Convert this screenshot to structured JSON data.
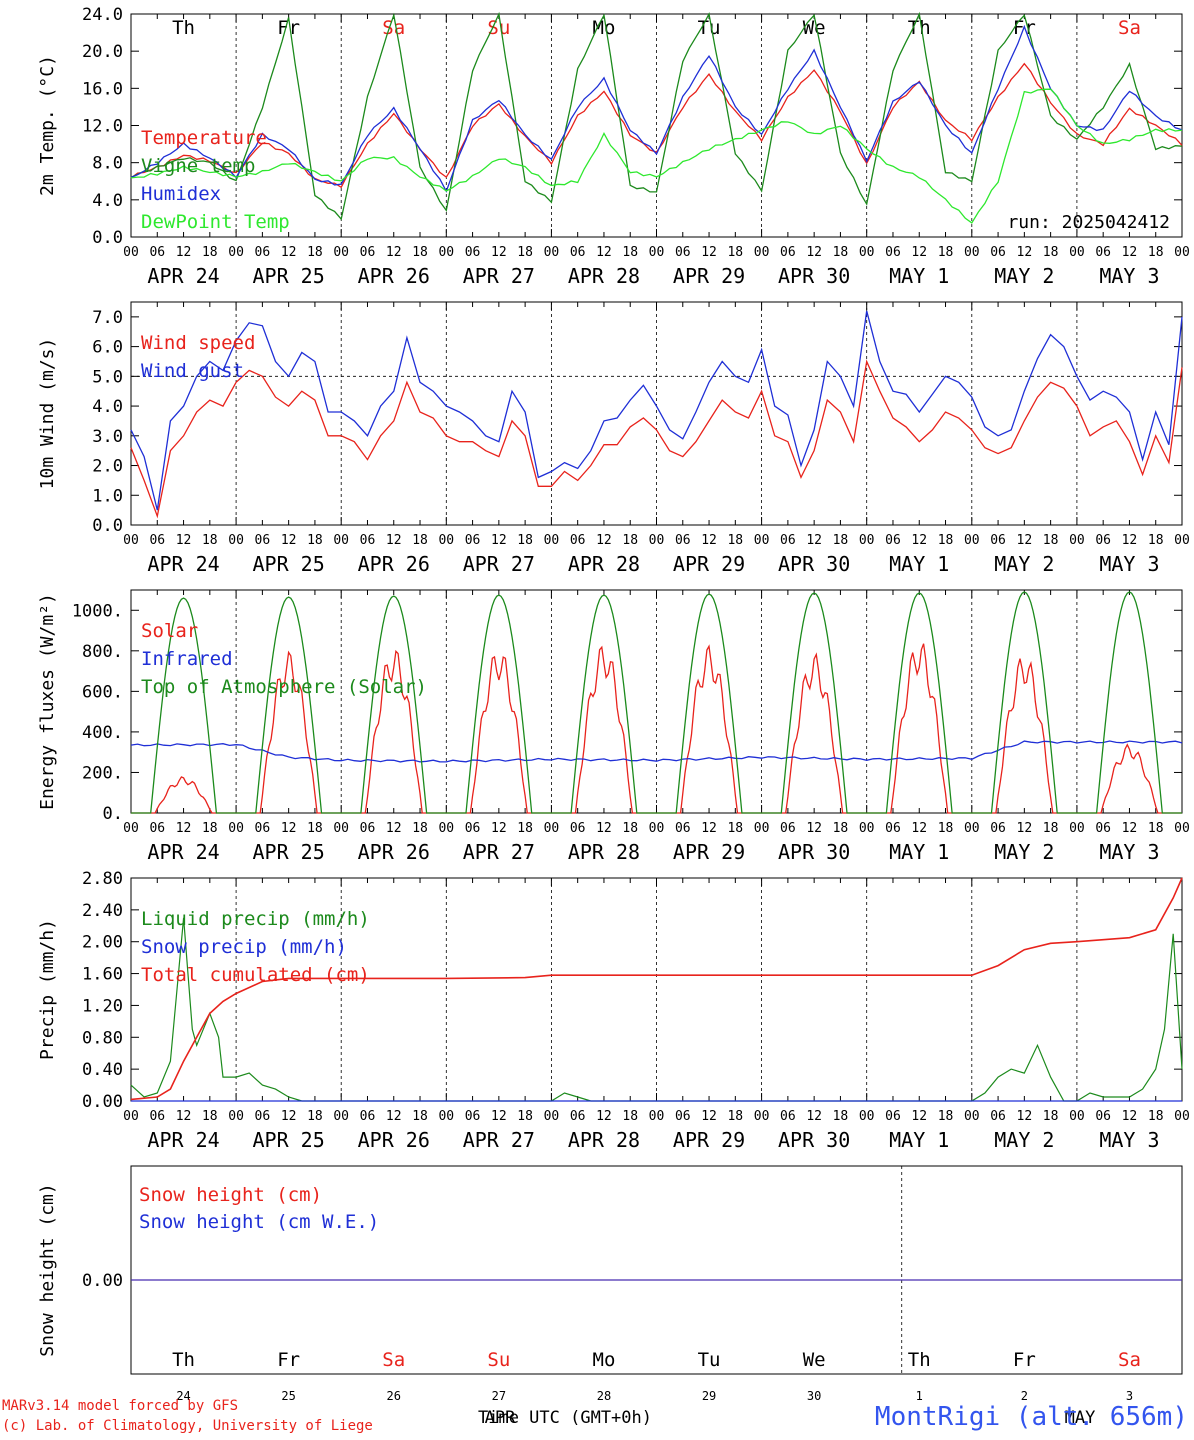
{
  "x_ticks": [
    "00",
    "06",
    "12",
    "18"
  ],
  "date_labels": [
    "APR 24",
    "APR 25",
    "APR 26",
    "APR 27",
    "APR 28",
    "APR 29",
    "APR 30",
    "MAY  1",
    "MAY  2",
    "MAY  3"
  ],
  "weekdays": [
    {
      "label": "Th",
      "weekend": false
    },
    {
      "label": "Fr",
      "weekend": false
    },
    {
      "label": "Sa",
      "weekend": true
    },
    {
      "label": "Su",
      "weekend": true
    },
    {
      "label": "Mo",
      "weekend": false
    },
    {
      "label": "Tu",
      "weekend": false
    },
    {
      "label": "We",
      "weekend": false
    },
    {
      "label": "Th",
      "weekend": false
    },
    {
      "label": "Fr",
      "weekend": false
    },
    {
      "label": "Sa",
      "weekend": true
    }
  ],
  "day_numbers": [
    "24",
    "25",
    "26",
    "27",
    "28",
    "29",
    "30",
    "1",
    "2",
    "3"
  ],
  "footer": {
    "model": "MARv3.14 model forced by GFS",
    "lab": "(c) Lab. of Climatology, University of Liege",
    "xlabel": "Time UTC (GMT+0h)",
    "month_label_1": "APR",
    "month_label_2": "MAY",
    "station": "MontRigi (alt. 656m)"
  },
  "colors": {
    "red": "#e8231c",
    "green": "#1c8a1c",
    "blue": "#1f2fd6",
    "lightgreen": "#2ee82e",
    "weekend": "#e8231c"
  },
  "chart_data": [
    {
      "type": "line",
      "ylabel": "2m Temp. (°C)",
      "ylim": [
        0,
        24
      ],
      "yticks": [
        "0.0",
        "4.0",
        "8.0",
        "12.0",
        "16.0",
        "20.0",
        "24.0"
      ],
      "annotation": "run: 2025042412",
      "legend_placement": "left",
      "x_unit": "hours since APR 24 00 UTC",
      "series": [
        {
          "name": "Temperature",
          "color": "red",
          "x": [
            0,
            6,
            12,
            18,
            24,
            30,
            36,
            42,
            48,
            54,
            60,
            66,
            72,
            78,
            84,
            90,
            96,
            102,
            108,
            114,
            120,
            126,
            132,
            138,
            144,
            150,
            156,
            162,
            168,
            174,
            180,
            186,
            192,
            198,
            204,
            210,
            216,
            222,
            228,
            234,
            240
          ],
          "values": [
            6.5,
            7.5,
            8.8,
            8.2,
            6.8,
            10.2,
            9.0,
            6.2,
            5.5,
            10.0,
            13.3,
            9.5,
            6.3,
            12.0,
            14.3,
            10.8,
            8.0,
            13.0,
            15.7,
            11.0,
            9.0,
            14.0,
            17.5,
            13.5,
            10.5,
            15.0,
            18.0,
            13.5,
            7.8,
            14.0,
            16.7,
            12.5,
            10.5,
            15.0,
            18.7,
            14.5,
            11.0,
            10.0,
            13.8,
            12.0,
            10.0
          ]
        },
        {
          "name": "Vigne temp",
          "color": "green",
          "x": [
            0,
            6,
            12,
            18,
            24,
            30,
            36,
            42,
            48,
            54,
            60,
            66,
            72,
            78,
            84,
            90,
            96,
            102,
            108,
            114,
            120,
            126,
            132,
            138,
            144,
            150,
            156,
            162,
            168,
            174,
            180,
            186,
            192,
            198,
            204,
            210,
            216,
            222,
            228,
            234,
            240
          ],
          "values": [
            6.5,
            7.5,
            8.5,
            8.0,
            6.0,
            14.0,
            23.5,
            4.5,
            2.0,
            15.0,
            24.0,
            7.5,
            2.8,
            18.0,
            24.0,
            6.0,
            3.8,
            18.0,
            24.0,
            5.5,
            4.8,
            19.0,
            24.0,
            9.0,
            5.0,
            20.0,
            24.0,
            9.0,
            3.5,
            18.0,
            24.0,
            7.0,
            6.0,
            20.0,
            24.0,
            13.0,
            10.5,
            14.0,
            18.5,
            9.5,
            9.8
          ]
        },
        {
          "name": "Humidex",
          "color": "blue",
          "x": [
            0,
            6,
            12,
            18,
            24,
            30,
            36,
            42,
            48,
            54,
            60,
            66,
            72,
            78,
            84,
            90,
            96,
            102,
            108,
            114,
            120,
            126,
            132,
            138,
            144,
            150,
            156,
            162,
            168,
            174,
            180,
            186,
            192,
            198,
            204,
            210,
            216,
            222,
            228,
            234,
            240
          ],
          "values": [
            6.3,
            8.0,
            10.0,
            8.5,
            6.5,
            11.0,
            9.5,
            6.2,
            5.6,
            11.0,
            13.8,
            9.5,
            5.0,
            12.5,
            14.8,
            11.0,
            8.3,
            14.0,
            17.0,
            11.5,
            9.0,
            15.0,
            19.6,
            14.0,
            11.0,
            16.0,
            20.0,
            14.0,
            8.2,
            14.5,
            16.8,
            12.0,
            9.0,
            16.0,
            22.5,
            16.0,
            12.0,
            11.5,
            15.8,
            13.0,
            11.5
          ]
        },
        {
          "name": "DewPoint Temp",
          "color": "lightgreen",
          "x": [
            0,
            6,
            12,
            18,
            24,
            30,
            36,
            42,
            48,
            54,
            60,
            66,
            72,
            78,
            84,
            90,
            96,
            102,
            108,
            114,
            120,
            126,
            132,
            138,
            144,
            150,
            156,
            162,
            168,
            174,
            180,
            186,
            192,
            198,
            204,
            210,
            216,
            222,
            228,
            234,
            240
          ],
          "values": [
            6.3,
            6.8,
            7.5,
            7.0,
            6.5,
            7.0,
            8.0,
            7.0,
            6.0,
            8.5,
            8.5,
            6.5,
            5.0,
            6.5,
            8.5,
            7.5,
            5.5,
            6.0,
            11.0,
            7.0,
            6.5,
            8.0,
            9.5,
            10.5,
            11.5,
            12.5,
            11.0,
            12.0,
            9.5,
            7.5,
            6.5,
            4.0,
            1.5,
            6.0,
            15.5,
            16.0,
            12.0,
            10.0,
            10.5,
            11.5,
            11.5
          ]
        }
      ]
    },
    {
      "type": "line",
      "ylabel": "10m Wind (m/s)",
      "ylim": [
        0,
        7.5
      ],
      "yticks": [
        "0.0",
        "1.0",
        "2.0",
        "3.0",
        "4.0",
        "5.0",
        "6.0",
        "7.0"
      ],
      "reference_line": 5.0,
      "series": [
        {
          "name": "Wind speed",
          "color": "red",
          "x": [
            0,
            3,
            6,
            9,
            12,
            15,
            18,
            21,
            24,
            27,
            30,
            33,
            36,
            39,
            42,
            45,
            48,
            51,
            54,
            57,
            60,
            63,
            66,
            69,
            72,
            75,
            78,
            81,
            84,
            87,
            90,
            93,
            96,
            99,
            102,
            105,
            108,
            111,
            114,
            117,
            120,
            123,
            126,
            129,
            132,
            135,
            138,
            141,
            144,
            147,
            150,
            153,
            156,
            159,
            162,
            165,
            168,
            171,
            174,
            177,
            180,
            183,
            186,
            189,
            192,
            195,
            198,
            201,
            204,
            207,
            210,
            213,
            216,
            219,
            222,
            225,
            228,
            231,
            234,
            237,
            240
          ],
          "values": [
            2.6,
            1.5,
            0.3,
            2.5,
            3.0,
            3.8,
            4.2,
            4.0,
            4.8,
            5.2,
            5.0,
            4.3,
            4.0,
            4.5,
            4.2,
            3.0,
            3.0,
            2.8,
            2.2,
            3.0,
            3.5,
            4.8,
            3.8,
            3.6,
            3.0,
            2.8,
            2.8,
            2.5,
            2.3,
            3.5,
            3.0,
            1.3,
            1.3,
            1.8,
            1.5,
            2.0,
            2.7,
            2.7,
            3.3,
            3.6,
            3.2,
            2.5,
            2.3,
            2.8,
            3.5,
            4.2,
            3.8,
            3.6,
            4.5,
            3.0,
            2.8,
            1.6,
            2.5,
            4.2,
            3.8,
            2.8,
            5.5,
            4.5,
            3.6,
            3.3,
            2.8,
            3.2,
            3.8,
            3.6,
            3.2,
            2.6,
            2.4,
            2.6,
            3.5,
            4.3,
            4.8,
            4.6,
            4.0,
            3.0,
            3.3,
            3.5,
            2.8,
            1.7,
            3.0,
            2.1,
            5.3
          ]
        },
        {
          "name": "Wind gust",
          "color": "blue",
          "x": [
            0,
            3,
            6,
            9,
            12,
            15,
            18,
            21,
            24,
            27,
            30,
            33,
            36,
            39,
            42,
            45,
            48,
            51,
            54,
            57,
            60,
            63,
            66,
            69,
            72,
            75,
            78,
            81,
            84,
            87,
            90,
            93,
            96,
            99,
            102,
            105,
            108,
            111,
            114,
            117,
            120,
            123,
            126,
            129,
            132,
            135,
            138,
            141,
            144,
            147,
            150,
            153,
            156,
            159,
            162,
            165,
            168,
            171,
            174,
            177,
            180,
            183,
            186,
            189,
            192,
            195,
            198,
            201,
            204,
            207,
            210,
            213,
            216,
            219,
            222,
            225,
            228,
            231,
            234,
            237,
            240
          ],
          "values": [
            3.2,
            2.3,
            0.5,
            3.5,
            4.0,
            5.0,
            5.5,
            5.2,
            6.2,
            6.8,
            6.7,
            5.5,
            5.0,
            5.8,
            5.5,
            3.8,
            3.8,
            3.5,
            3.0,
            4.0,
            4.5,
            6.3,
            4.8,
            4.5,
            4.0,
            3.8,
            3.5,
            3.0,
            2.8,
            4.5,
            3.8,
            1.6,
            1.8,
            2.1,
            1.9,
            2.5,
            3.5,
            3.6,
            4.2,
            4.7,
            4.0,
            3.2,
            2.9,
            3.8,
            4.8,
            5.5,
            5.0,
            4.8,
            5.9,
            4.0,
            3.7,
            2.0,
            3.2,
            5.5,
            5.0,
            4.0,
            7.2,
            5.5,
            4.5,
            4.4,
            3.8,
            4.4,
            5.0,
            4.8,
            4.3,
            3.3,
            3.0,
            3.2,
            4.5,
            5.6,
            6.4,
            6.0,
            5.0,
            4.2,
            4.5,
            4.3,
            3.8,
            2.2,
            3.8,
            2.7,
            7.0
          ]
        }
      ]
    },
    {
      "type": "line",
      "ylabel": "Energy fluxes (W/m²)",
      "ylim": [
        0,
        1100
      ],
      "yticks": [
        "0.",
        "200.",
        "400.",
        "600.",
        "800.",
        "1000."
      ],
      "series": [
        {
          "name": "Solar",
          "color": "red",
          "peaks": [
            180,
            800,
            820,
            820,
            840,
            830,
            790,
            860,
            790,
            340
          ]
        },
        {
          "name": "Infrared",
          "color": "blue",
          "x": [
            0,
            24,
            36,
            48,
            72,
            96,
            120,
            144,
            168,
            192,
            204,
            216,
            240
          ],
          "values": [
            335,
            338,
            275,
            260,
            255,
            265,
            260,
            275,
            265,
            270,
            350,
            350,
            350
          ]
        },
        {
          "name": "Top of Atmosphere (Solar)",
          "color": "green",
          "peaks": [
            1060,
            1065,
            1070,
            1075,
            1075,
            1080,
            1085,
            1085,
            1090,
            1090
          ]
        }
      ]
    },
    {
      "type": "line",
      "ylabel": "Precip (mm/h)",
      "ylim": [
        0,
        2.8
      ],
      "yticks": [
        "0.00",
        "0.40",
        "0.80",
        "1.20",
        "1.60",
        "2.00",
        "2.40",
        "2.80"
      ],
      "series": [
        {
          "name": "Liquid precip (mm/h)",
          "color": "green",
          "x": [
            0,
            3,
            6,
            9,
            12,
            14,
            15,
            18,
            20,
            21,
            24,
            27,
            30,
            33,
            36,
            39,
            42,
            48,
            96,
            99,
            102,
            105,
            192,
            195,
            198,
            201,
            204,
            207,
            210,
            213,
            216,
            219,
            222,
            225,
            228,
            231,
            234,
            236,
            238,
            240
          ],
          "values": [
            0.2,
            0.05,
            0.1,
            0.5,
            2.3,
            0.9,
            0.7,
            1.1,
            0.8,
            0.3,
            0.3,
            0.35,
            0.2,
            0.15,
            0.05,
            0.0,
            0.0,
            0.0,
            0.0,
            0.1,
            0.05,
            0.0,
            0.0,
            0.1,
            0.3,
            0.4,
            0.35,
            0.7,
            0.3,
            0.0,
            0.0,
            0.1,
            0.05,
            0.05,
            0.05,
            0.15,
            0.4,
            0.9,
            2.1,
            0.4
          ]
        },
        {
          "name": "Snow precip (mm/h)",
          "color": "blue",
          "x": [
            0,
            240
          ],
          "values": [
            0,
            0
          ]
        },
        {
          "name": "Total cumulated (cm)",
          "color": "red",
          "x": [
            0,
            6,
            9,
            12,
            15,
            18,
            21,
            24,
            30,
            36,
            48,
            72,
            90,
            96,
            120,
            144,
            168,
            192,
            198,
            204,
            210,
            216,
            228,
            234,
            238,
            240
          ],
          "values": [
            0.02,
            0.05,
            0.15,
            0.5,
            0.8,
            1.1,
            1.25,
            1.35,
            1.5,
            1.54,
            1.54,
            1.54,
            1.55,
            1.58,
            1.58,
            1.58,
            1.58,
            1.58,
            1.7,
            1.9,
            1.98,
            2.0,
            2.05,
            2.15,
            2.55,
            2.8
          ]
        }
      ]
    },
    {
      "type": "line",
      "ylabel": "Snow height (cm)",
      "yticks": [
        "0.00"
      ],
      "series": [
        {
          "name": "Snow height (cm)",
          "color": "red",
          "x": [
            0,
            240
          ],
          "values": [
            0,
            0
          ]
        },
        {
          "name": "Snow height (cm W.E.)",
          "color": "blue",
          "x": [
            0,
            240
          ],
          "values": [
            0,
            0
          ]
        }
      ]
    }
  ]
}
